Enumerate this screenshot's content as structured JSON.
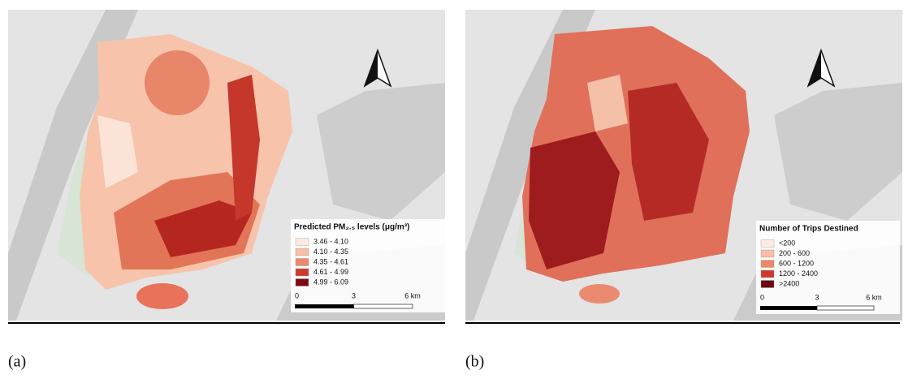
{
  "panels": [
    {
      "label": "(a)",
      "legend": {
        "title": "Predicted PM₂.₅ levels (μg/m³)",
        "items": [
          {
            "label": "3.46 - 4.10",
            "color": "#fdebe1"
          },
          {
            "label": "4.10 - 4.35",
            "color": "#f7bfa5"
          },
          {
            "label": "4.35 - 4.61",
            "color": "#ee8867"
          },
          {
            "label": "4.61 - 4.99",
            "color": "#cf3a2c"
          },
          {
            "label": "4.99 - 6.09",
            "color": "#7f0a14"
          }
        ]
      },
      "scale": [
        "0",
        "3",
        "6 km"
      ]
    },
    {
      "label": "(b)",
      "legend": {
        "title": "Number of Trips Destined",
        "items": [
          {
            "label": "<200",
            "color": "#fdebe1"
          },
          {
            "label": "200 - 600",
            "color": "#f7bfa5"
          },
          {
            "label": "600 - 1200",
            "color": "#ee8867"
          },
          {
            "label": "1200 - 2400",
            "color": "#cf3a2c"
          },
          {
            "label": ">2400",
            "color": "#6b0510"
          }
        ]
      },
      "scale": [
        "0",
        "3",
        "6 km"
      ]
    }
  ]
}
